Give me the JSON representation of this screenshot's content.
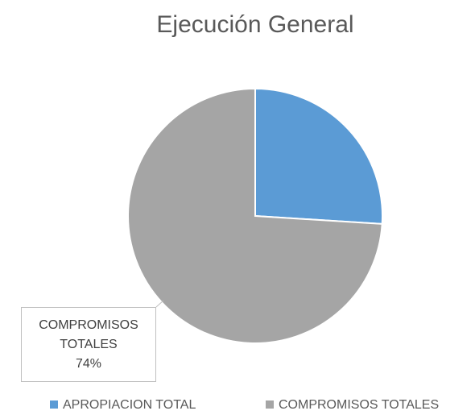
{
  "chart_data": {
    "type": "pie",
    "title": "Ejecución General",
    "categories": [
      "APROPIACION TOTAL",
      "COMPROMISOS TOTALES"
    ],
    "values": [
      26,
      74
    ],
    "value_labels": [
      null,
      "74%"
    ],
    "colors": [
      "#5b9bd5",
      "#a5a5a5"
    ],
    "legend": "bottom"
  }
}
